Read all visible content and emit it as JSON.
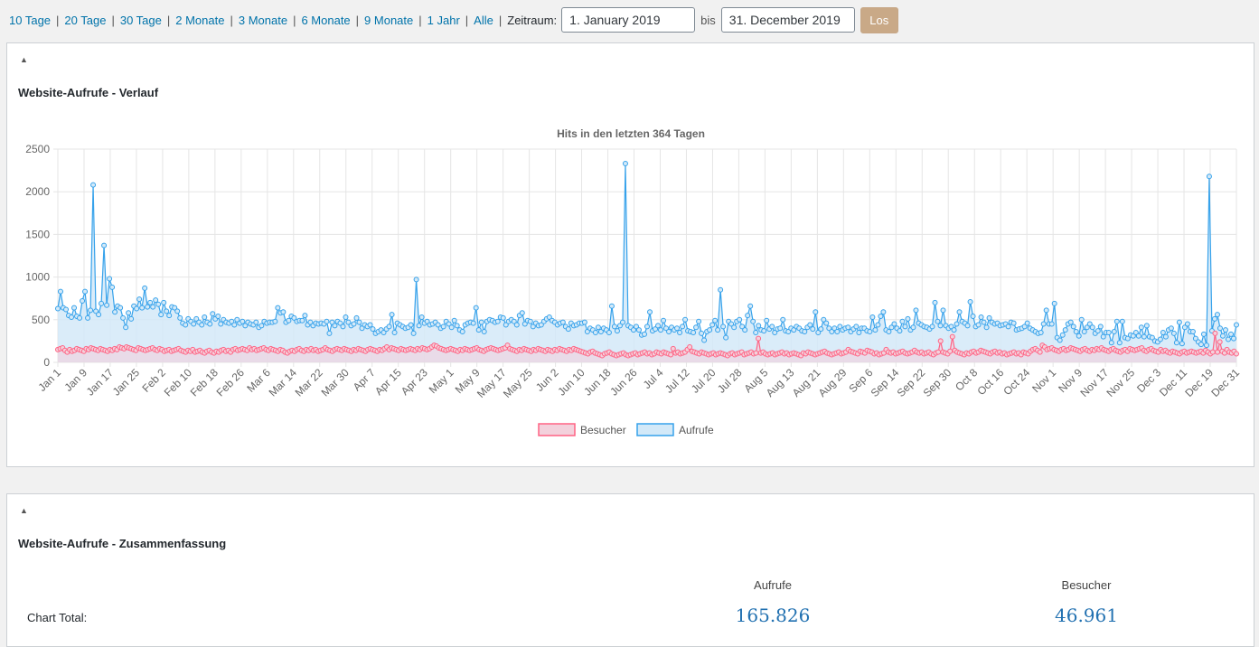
{
  "filters": {
    "ranges": [
      "10 Tage",
      "20 Tage",
      "30 Tage",
      "2 Monate",
      "3 Monate",
      "6 Monate",
      "9 Monate",
      "1 Jahr",
      "Alle"
    ],
    "zeitraum_label": "Zeitraum:",
    "from": "1. January 2019",
    "bis_label": "bis",
    "to": "31. December 2019",
    "go_label": "Los"
  },
  "box1": {
    "title": "Website-Aufrufe - Verlauf",
    "toggle": "▲"
  },
  "box2": {
    "title": "Website-Aufrufe - Zusammenfassung",
    "toggle": "▲"
  },
  "summary": {
    "row_label": "Chart Total:",
    "col1_head": "Aufrufe",
    "col2_head": "Besucher",
    "col1_value": "165.826",
    "col2_value": "46.961"
  },
  "colors": {
    "aufrufe_line": "#36a2eb",
    "aufrufe_fill": "#d3e9f8",
    "besucher_line": "#ff6384",
    "besucher_fill": "#f3d1dc",
    "link": "#0073aa"
  },
  "chart_data": {
    "type": "line",
    "title": "Hits in den letzten 364 Tagen",
    "ylim": [
      0,
      2500
    ],
    "yticks": [
      0,
      500,
      1000,
      1500,
      2000,
      2500
    ],
    "grid": true,
    "legend_position": "bottom",
    "x_tick_labels": [
      "Jan 1",
      "Jan 9",
      "Jan 17",
      "Jan 25",
      "Feb 2",
      "Feb 10",
      "Feb 18",
      "Feb 26",
      "Mar 6",
      "Mar 14",
      "Mar 22",
      "Mar 30",
      "Apr 7",
      "Apr 15",
      "Apr 23",
      "May 1",
      "May 9",
      "May 17",
      "May 25",
      "Jun 2",
      "Jun 10",
      "Jun 18",
      "Jun 26",
      "Jul 4",
      "Jul 12",
      "Jul 20",
      "Jul 28",
      "Aug 5",
      "Aug 13",
      "Aug 21",
      "Aug 29",
      "Sep 6",
      "Sep 14",
      "Sep 22",
      "Sep 30",
      "Oct 8",
      "Oct 16",
      "Oct 24",
      "Nov 1",
      "Nov 9",
      "Nov 17",
      "Nov 25",
      "Dec 3",
      "Dec 11",
      "Dec 19",
      "Dec 31"
    ],
    "series": [
      {
        "name": "Besucher",
        "values": [
          150,
          160,
          170,
          140,
          120,
          150,
          130,
          140,
          160,
          150,
          140,
          130,
          160,
          150,
          170,
          160,
          150,
          140,
          160,
          150,
          140,
          130,
          150,
          140,
          160,
          150,
          180,
          170,
          160,
          180,
          170,
          160,
          150,
          140,
          170,
          160,
          150,
          140,
          150,
          160,
          170,
          150,
          140,
          160,
          150,
          130,
          140,
          150,
          130,
          140,
          150,
          160,
          140,
          130,
          120,
          140,
          130,
          150,
          120,
          130,
          140,
          120,
          110,
          130,
          140,
          120,
          110,
          130,
          120,
          140,
          150,
          130,
          140,
          120,
          150,
          160,
          140,
          150,
          160,
          150,
          140,
          170,
          150,
          160,
          140,
          150,
          160,
          170,
          150,
          140,
          160,
          150,
          140,
          130,
          150,
          140,
          120,
          110,
          130,
          140,
          130,
          150,
          160,
          140,
          130,
          150,
          140,
          160,
          140,
          150,
          130,
          140,
          150,
          170,
          150,
          140,
          130,
          150,
          160,
          150,
          140,
          160,
          150,
          140,
          130,
          150,
          140,
          160,
          150,
          140,
          130,
          150,
          160,
          150,
          140,
          130,
          150,
          140,
          160,
          180,
          150,
          170,
          160,
          150,
          140,
          160,
          150,
          140,
          150,
          160,
          150,
          140,
          160,
          150,
          170,
          160,
          150,
          160,
          180,
          200,
          190,
          170,
          160,
          150,
          140,
          150,
          160,
          150,
          140,
          130,
          150,
          140,
          160,
          150,
          140,
          150,
          160,
          170,
          150,
          140,
          130,
          150,
          160,
          170,
          160,
          150,
          140,
          150,
          160,
          170,
          200,
          160,
          150,
          140,
          130,
          150,
          140,
          160,
          150,
          140,
          130,
          150,
          140,
          160,
          150,
          140,
          130,
          150,
          140,
          130,
          150,
          140,
          160,
          150,
          140,
          130,
          150,
          140,
          160,
          150,
          140,
          130,
          120,
          110,
          100,
          120,
          130,
          110,
          100,
          90,
          80,
          100,
          110,
          120,
          100,
          90,
          80,
          90,
          100,
          110,
          90,
          80,
          90,
          100,
          110,
          90,
          100,
          110,
          120,
          100,
          110,
          90,
          100,
          120,
          110,
          100,
          120,
          110,
          100,
          90,
          160,
          110,
          120,
          100,
          110,
          120,
          150,
          180,
          130,
          120,
          110,
          100,
          120,
          110,
          100,
          90,
          100,
          110,
          90,
          100,
          110,
          100,
          90,
          80,
          100,
          110,
          90,
          100,
          110,
          120,
          90,
          100,
          110,
          120,
          100,
          110,
          280,
          110,
          120,
          100,
          90,
          100,
          110,
          90,
          100,
          110,
          120,
          100,
          110,
          90,
          100,
          110,
          100,
          90,
          80,
          110,
          100,
          120,
          110,
          100,
          90,
          100,
          110,
          120,
          130,
          110,
          100,
          90,
          100,
          110,
          120,
          100,
          110,
          120,
          150,
          130,
          120,
          110,
          100,
          130,
          120,
          110,
          140,
          130,
          120,
          100,
          110,
          90,
          100,
          110,
          150,
          120,
          110,
          120,
          100,
          110,
          120,
          130,
          110,
          100,
          110,
          120,
          140,
          120,
          110,
          120,
          100,
          110,
          120,
          100,
          90,
          110,
          120,
          250,
          120,
          110,
          100,
          130,
          300,
          140,
          120,
          110,
          100,
          90,
          110,
          100,
          120,
          130,
          110,
          120,
          140,
          130,
          120,
          110,
          100,
          120,
          130,
          110,
          120,
          100,
          110,
          90,
          100,
          110,
          120,
          100,
          110,
          90,
          120,
          110,
          100,
          130,
          150,
          160,
          140,
          120,
          200,
          180,
          150,
          160,
          170,
          150,
          140,
          130,
          150,
          160,
          140,
          150,
          170,
          160,
          150,
          140,
          130,
          150,
          160,
          140,
          130,
          150,
          140,
          160,
          150,
          170,
          150,
          140,
          130,
          150,
          160,
          140,
          130,
          120,
          140,
          150,
          130,
          160,
          150,
          140,
          150,
          160,
          170,
          140,
          130,
          150,
          160,
          140,
          130,
          120,
          150,
          130,
          140,
          120,
          110,
          130,
          120,
          110,
          100,
          120,
          130,
          110,
          120,
          130,
          120,
          110,
          120,
          130,
          110,
          140,
          120,
          100,
          120,
          340,
          120,
          240,
          130,
          110,
          150,
          120,
          110,
          130,
          100
        ]
      },
      {
        "name": "Aufrufe",
        "values": [
          630,
          830,
          640,
          620,
          550,
          530,
          640,
          540,
          520,
          720,
          830,
          520,
          610,
          2080,
          600,
          560,
          690,
          1370,
          670,
          980,
          880,
          590,
          660,
          640,
          520,
          410,
          580,
          510,
          660,
          630,
          740,
          640,
          870,
          650,
          700,
          650,
          730,
          680,
          560,
          700,
          600,
          550,
          650,
          640,
          600,
          520,
          460,
          440,
          510,
          480,
          450,
          510,
          470,
          440,
          530,
          470,
          450,
          570,
          510,
          540,
          450,
          500,
          470,
          460,
          480,
          440,
          500,
          460,
          480,
          430,
          470,
          450,
          440,
          470,
          410,
          430,
          480,
          460,
          470,
          470,
          480,
          640,
          580,
          590,
          470,
          490,
          540,
          520,
          480,
          490,
          490,
          550,
          440,
          470,
          430,
          460,
          450,
          460,
          450,
          480,
          340,
          470,
          430,
          480,
          460,
          420,
          530,
          470,
          430,
          450,
          520,
          470,
          400,
          440,
          420,
          440,
          390,
          340,
          360,
          380,
          350,
          390,
          420,
          560,
          350,
          460,
          440,
          420,
          400,
          410,
          440,
          340,
          970,
          430,
          530,
          460,
          480,
          440,
          450,
          470,
          440,
          400,
          420,
          480,
          450,
          410,
          490,
          430,
          380,
          360,
          440,
          460,
          470,
          460,
          640,
          380,
          470,
          360,
          480,
          500,
          490,
          470,
          480,
          530,
          520,
          440,
          480,
          500,
          480,
          440,
          550,
          580,
          450,
          490,
          480,
          420,
          460,
          430,
          440,
          480,
          510,
          530,
          490,
          470,
          440,
          460,
          470,
          420,
          390,
          460,
          430,
          440,
          460,
          460,
          470,
          360,
          400,
          380,
          350,
          410,
          360,
          400,
          380,
          350,
          660,
          420,
          370,
          430,
          470,
          2330,
          430,
          410,
          380,
          420,
          380,
          320,
          330,
          420,
          590,
          370,
          390,
          430,
          380,
          490,
          400,
          360,
          410,
          380,
          400,
          350,
          420,
          500,
          370,
          360,
          350,
          410,
          480,
          340,
          260,
          360,
          380,
          440,
          490,
          380,
          850,
          420,
          290,
          480,
          450,
          410,
          480,
          500,
          420,
          380,
          550,
          660,
          480,
          350,
          430,
          380,
          370,
          490,
          390,
          420,
          350,
          390,
          400,
          500,
          370,
          360,
          400,
          380,
          420,
          400,
          370,
          360,
          410,
          440,
          390,
          590,
          350,
          390,
          500,
          460,
          400,
          360,
          400,
          360,
          420,
          380,
          400,
          410,
          360,
          390,
          420,
          350,
          400,
          400,
          370,
          360,
          530,
          380,
          440,
          540,
          590,
          380,
          360,
          410,
          450,
          400,
          370,
          480,
          420,
          510,
          380,
          410,
          610,
          460,
          440,
          420,
          410,
          390,
          420,
          700,
          480,
          430,
          610,
          430,
          400,
          420,
          380,
          450,
          590,
          480,
          460,
          430,
          710,
          540,
          420,
          440,
          530,
          470,
          410,
          520,
          470,
          450,
          460,
          430,
          440,
          450,
          420,
          470,
          460,
          380,
          390,
          400,
          420,
          460,
          400,
          380,
          360,
          340,
          350,
          450,
          610,
          450,
          450,
          690,
          290,
          260,
          320,
          380,
          450,
          470,
          420,
          360,
          310,
          500,
          360,
          410,
          450,
          410,
          340,
          370,
          420,
          300,
          350,
          350,
          230,
          360,
          480,
          230,
          480,
          290,
          280,
          320,
          310,
          350,
          310,
          410,
          300,
          430,
          300,
          290,
          250,
          240,
          270,
          350,
          300,
          380,
          400,
          340,
          230,
          470,
          220,
          410,
          450,
          360,
          360,
          280,
          240,
          210,
          330,
          200,
          2180,
          370,
          510,
          560,
          400,
          310,
          380,
          270,
          330,
          280,
          440
        ]
      }
    ]
  }
}
